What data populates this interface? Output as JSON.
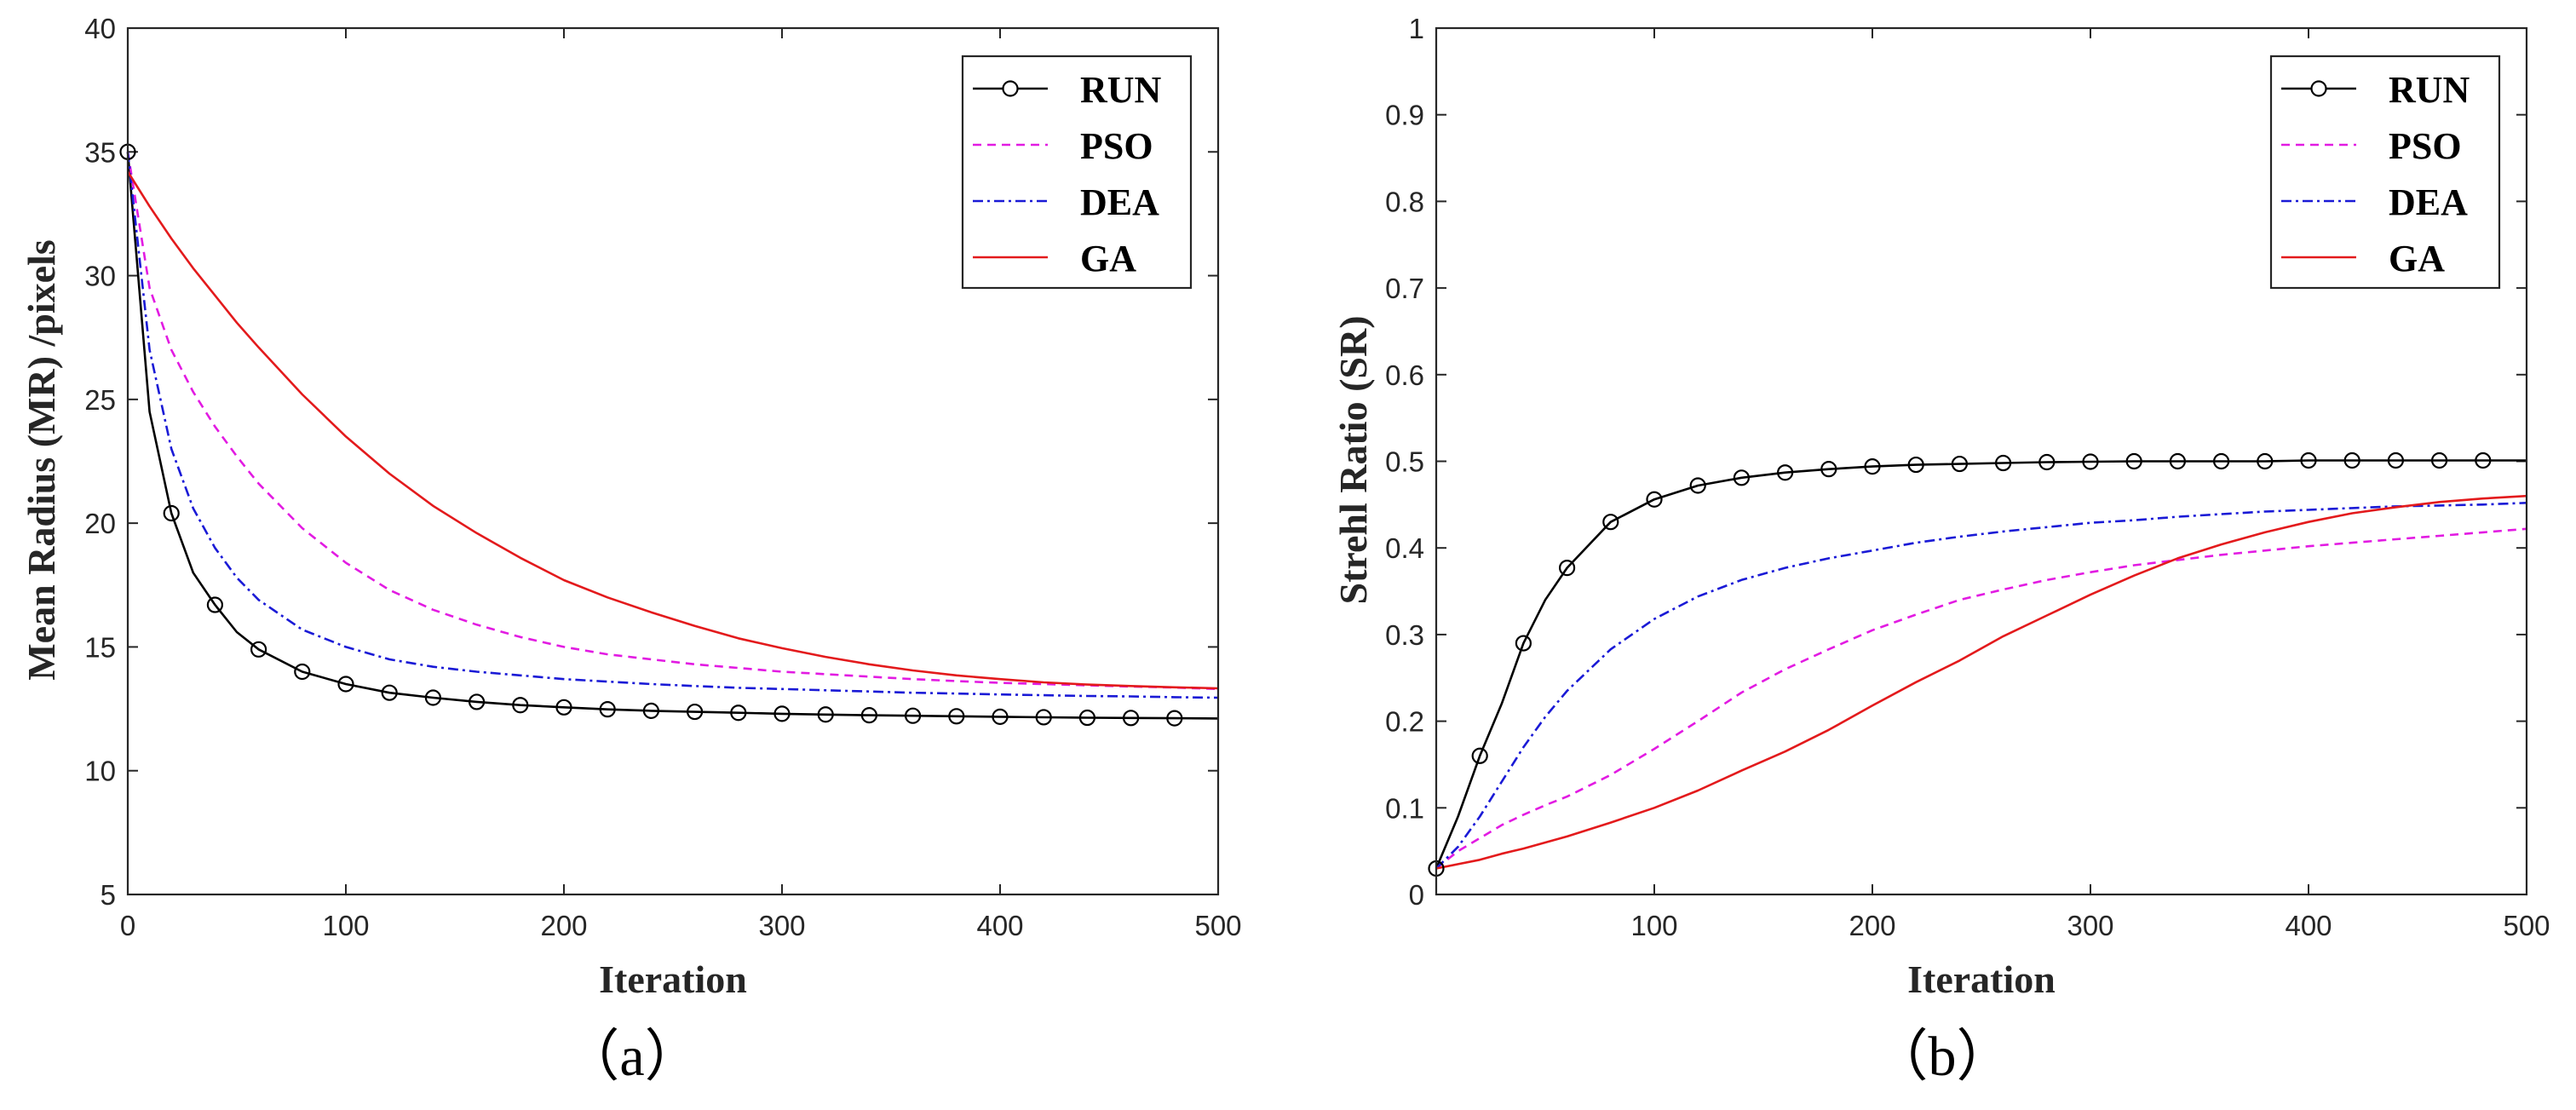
{
  "figure": {
    "captions": [
      "（a）",
      "（b）"
    ]
  },
  "chart_data": [
    {
      "type": "line",
      "panel": "a",
      "title": "",
      "xlabel": "Iteration",
      "ylabel": "Mean Radius (MR) /pixels",
      "xlim": [
        0,
        500
      ],
      "ylim": [
        5,
        40
      ],
      "xticks": [
        0,
        100,
        200,
        300,
        400,
        500
      ],
      "yticks": [
        5,
        10,
        15,
        20,
        25,
        30,
        35,
        40
      ],
      "legend_position": "top-right",
      "x": [
        0,
        10,
        20,
        30,
        40,
        50,
        60,
        80,
        100,
        120,
        140,
        160,
        180,
        200,
        220,
        240,
        260,
        280,
        300,
        320,
        340,
        360,
        380,
        400,
        420,
        440,
        460,
        480,
        500
      ],
      "series": [
        {
          "name": "RUN",
          "color": "#000000",
          "dash": "solid",
          "marker": "circle",
          "values": [
            35.0,
            24.5,
            20.4,
            18.0,
            16.7,
            15.6,
            14.9,
            14.0,
            13.5,
            13.15,
            12.95,
            12.78,
            12.65,
            12.56,
            12.48,
            12.42,
            12.38,
            12.34,
            12.3,
            12.27,
            12.24,
            12.22,
            12.2,
            12.18,
            12.16,
            12.14,
            12.13,
            12.12,
            12.11
          ]
        },
        {
          "name": "PSO",
          "color": "#e21be2",
          "dash": "dashed",
          "marker": "",
          "values": [
            35.0,
            29.5,
            27.0,
            25.3,
            23.9,
            22.7,
            21.6,
            19.8,
            18.4,
            17.3,
            16.5,
            15.9,
            15.4,
            15.0,
            14.7,
            14.5,
            14.3,
            14.15,
            14.0,
            13.9,
            13.8,
            13.7,
            13.62,
            13.55,
            13.5,
            13.45,
            13.4,
            13.36,
            13.3
          ]
        },
        {
          "name": "DEA",
          "color": "#1a1ad6",
          "dash": "dashdot",
          "marker": "",
          "values": [
            35.0,
            27.0,
            23.0,
            20.6,
            19.0,
            17.8,
            16.9,
            15.7,
            15.0,
            14.5,
            14.2,
            14.0,
            13.85,
            13.7,
            13.6,
            13.5,
            13.42,
            13.35,
            13.3,
            13.25,
            13.2,
            13.15,
            13.12,
            13.08,
            13.05,
            13.02,
            13.0,
            12.97,
            12.95
          ]
        },
        {
          "name": "GA",
          "color": "#e31a1c",
          "dash": "solid",
          "marker": "",
          "values": [
            34.2,
            32.8,
            31.5,
            30.3,
            29.2,
            28.1,
            27.1,
            25.2,
            23.5,
            22.0,
            20.7,
            19.6,
            18.6,
            17.7,
            17.0,
            16.4,
            15.85,
            15.35,
            14.95,
            14.6,
            14.3,
            14.05,
            13.85,
            13.7,
            13.57,
            13.48,
            13.42,
            13.37,
            13.33
          ]
        }
      ]
    },
    {
      "type": "line",
      "panel": "b",
      "title": "",
      "xlabel": "Iteration",
      "ylabel": "Strehl Ratio (SR)",
      "xlim": [
        0,
        500
      ],
      "ylim": [
        0,
        1
      ],
      "xticks": [
        100,
        200,
        300,
        400,
        500
      ],
      "yticks": [
        0,
        0.1,
        0.2,
        0.3,
        0.4,
        0.5,
        0.6,
        0.7,
        0.8,
        0.9,
        1
      ],
      "legend_position": "top-right",
      "x": [
        0,
        10,
        20,
        30,
        40,
        50,
        60,
        80,
        100,
        120,
        140,
        160,
        180,
        200,
        220,
        240,
        260,
        280,
        300,
        320,
        340,
        360,
        380,
        400,
        420,
        440,
        460,
        480,
        500
      ],
      "series": [
        {
          "name": "RUN",
          "color": "#000000",
          "dash": "solid",
          "marker": "circle",
          "values": [
            0.03,
            0.09,
            0.16,
            0.22,
            0.29,
            0.34,
            0.377,
            0.43,
            0.456,
            0.472,
            0.481,
            0.487,
            0.491,
            0.494,
            0.496,
            0.497,
            0.498,
            0.499,
            0.4995,
            0.5,
            0.5,
            0.5,
            0.5,
            0.501,
            0.501,
            0.501,
            0.501,
            0.501,
            0.501
          ]
        },
        {
          "name": "PSO",
          "color": "#e21be2",
          "dash": "dashed",
          "marker": "",
          "values": [
            0.03,
            0.05,
            0.065,
            0.08,
            0.092,
            0.103,
            0.113,
            0.138,
            0.168,
            0.2,
            0.233,
            0.26,
            0.283,
            0.305,
            0.323,
            0.34,
            0.352,
            0.363,
            0.372,
            0.38,
            0.386,
            0.392,
            0.397,
            0.402,
            0.406,
            0.41,
            0.414,
            0.418,
            0.422
          ]
        },
        {
          "name": "DEA",
          "color": "#1a1ad6",
          "dash": "dashdot",
          "marker": "",
          "values": [
            0.03,
            0.055,
            0.09,
            0.13,
            0.17,
            0.205,
            0.235,
            0.283,
            0.318,
            0.344,
            0.363,
            0.377,
            0.388,
            0.397,
            0.406,
            0.413,
            0.419,
            0.424,
            0.429,
            0.432,
            0.436,
            0.439,
            0.442,
            0.444,
            0.446,
            0.448,
            0.449,
            0.45,
            0.452
          ]
        },
        {
          "name": "GA",
          "color": "#e31a1c",
          "dash": "solid",
          "marker": "",
          "values": [
            0.03,
            0.035,
            0.04,
            0.047,
            0.053,
            0.06,
            0.067,
            0.083,
            0.1,
            0.12,
            0.143,
            0.165,
            0.19,
            0.218,
            0.245,
            0.27,
            0.298,
            0.322,
            0.346,
            0.368,
            0.388,
            0.404,
            0.418,
            0.43,
            0.44,
            0.447,
            0.453,
            0.457,
            0.46
          ]
        }
      ]
    }
  ]
}
